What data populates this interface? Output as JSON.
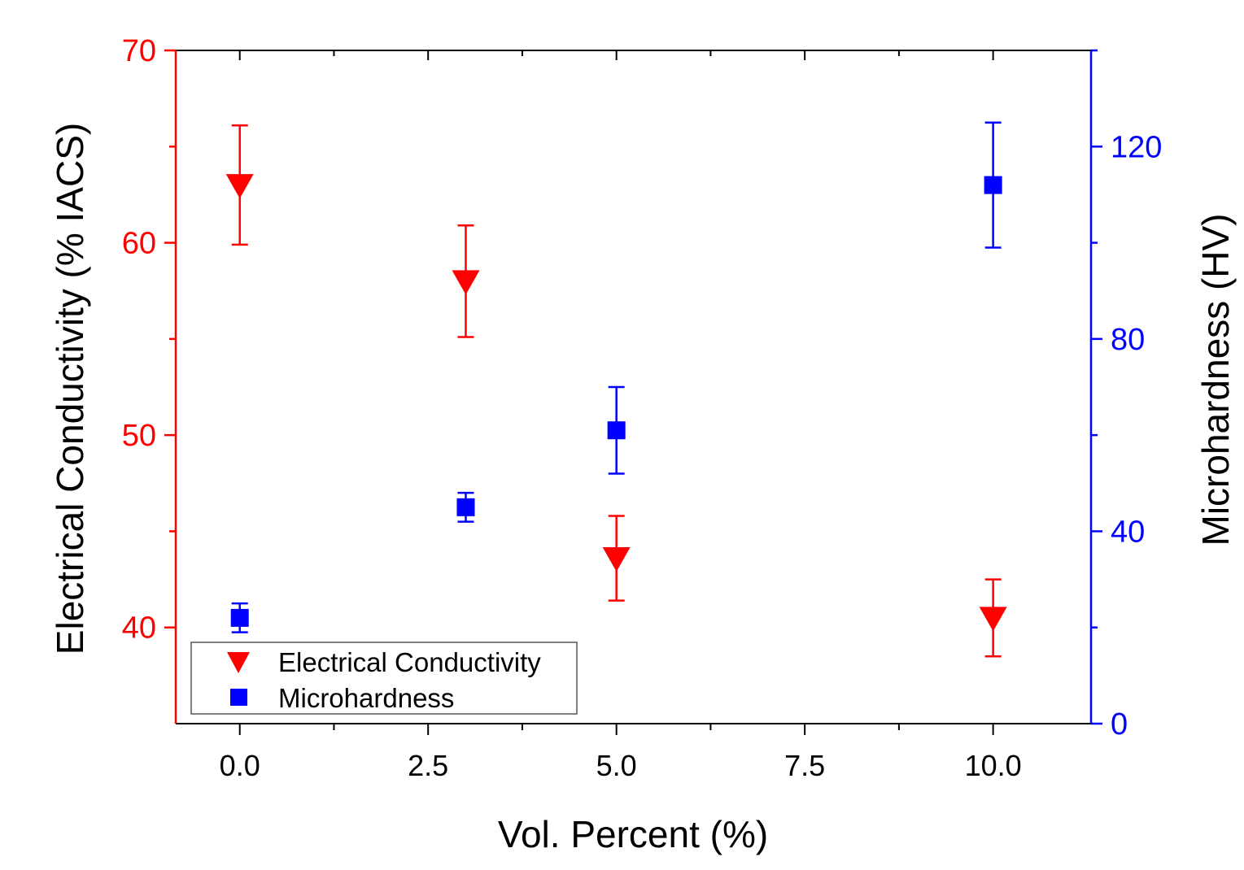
{
  "colors": {
    "conductivity": "#ff0000",
    "hardness": "#0000ff",
    "frame": "#000000"
  },
  "legend": {
    "position": "bottom-left",
    "items": [
      {
        "label": "Electrical Conductivity",
        "marker": "triangle-down",
        "series": "conductivity"
      },
      {
        "label": "Microhardness",
        "marker": "square",
        "series": "hardness"
      }
    ]
  },
  "chart_data": {
    "type": "scatter",
    "title": "",
    "xlabel": "Vol. Percent (%)",
    "ylabel_left": "Electrical Conductivity (% IACS)",
    "ylabel_right": "Microhardness (HV)",
    "xlim": [
      -0.85,
      11.3
    ],
    "ylim_left": [
      35,
      70
    ],
    "ylim_right": [
      0,
      140
    ],
    "x_ticks": [
      {
        "value": 0,
        "label": "0.0"
      },
      {
        "value": 2.5,
        "label": "2.5"
      },
      {
        "value": 5,
        "label": "5.0"
      },
      {
        "value": 7.5,
        "label": "7.5"
      },
      {
        "value": 10,
        "label": "10.0"
      }
    ],
    "x_minor_ticks": [
      1.25,
      3.75,
      6.25,
      8.75
    ],
    "y_left_ticks": [
      {
        "value": 40,
        "label": "40"
      },
      {
        "value": 50,
        "label": "50"
      },
      {
        "value": 60,
        "label": "60"
      },
      {
        "value": 70,
        "label": "70"
      }
    ],
    "y_left_minor_ticks": [
      45,
      55,
      65
    ],
    "y_right_ticks": [
      {
        "value": 0,
        "label": "0"
      },
      {
        "value": 40,
        "label": "40"
      },
      {
        "value": 80,
        "label": "80"
      },
      {
        "value": 120,
        "label": "120"
      }
    ],
    "y_right_minor_ticks": [
      20,
      60,
      100,
      140
    ],
    "series": [
      {
        "name": "Electrical Conductivity",
        "key": "conductivity",
        "axis": "left",
        "marker": "triangle-down",
        "x": [
          0,
          3,
          5,
          10
        ],
        "y": [
          63.0,
          58.0,
          43.6,
          40.5
        ],
        "err": [
          3.1,
          2.9,
          2.2,
          2.0
        ]
      },
      {
        "name": "Microhardness",
        "key": "hardness",
        "axis": "right",
        "marker": "square",
        "x": [
          0,
          3,
          5,
          10
        ],
        "y": [
          22,
          45,
          61,
          112
        ],
        "err": [
          3,
          3,
          9,
          13
        ]
      }
    ]
  }
}
